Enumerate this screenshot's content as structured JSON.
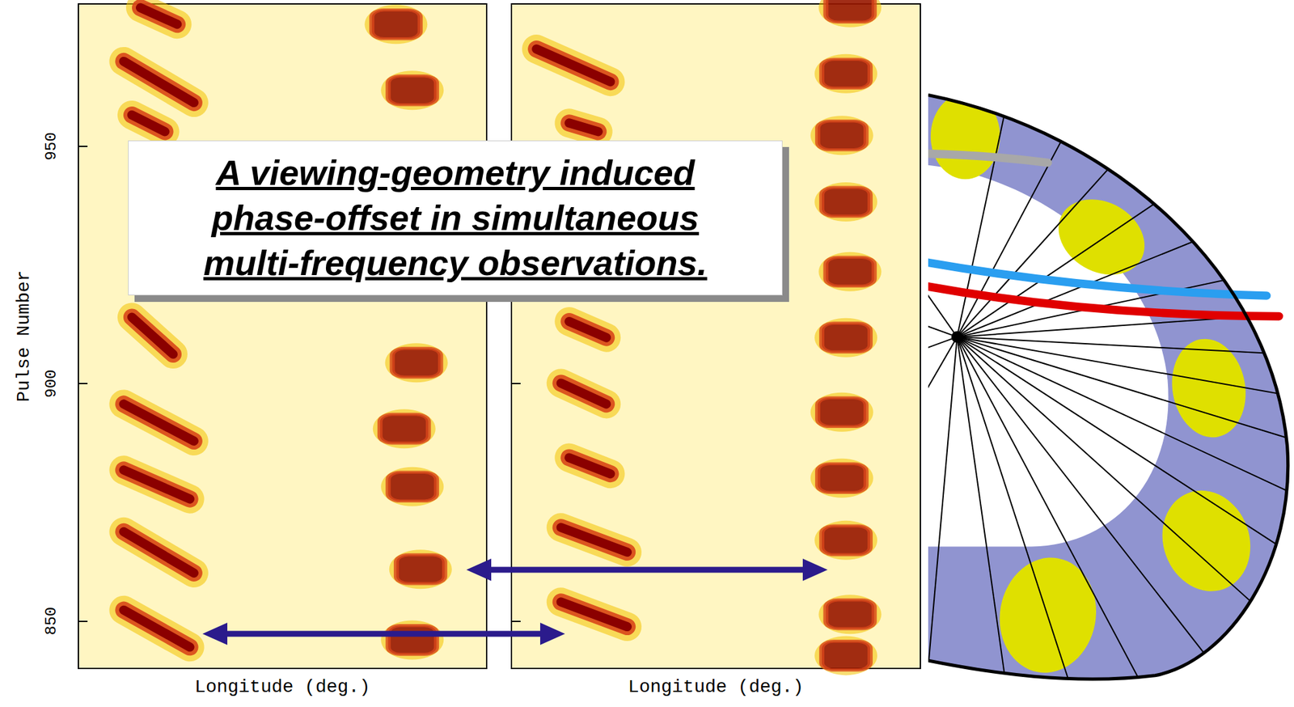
{
  "title_box": {
    "lines": [
      "A viewing-geometry induced",
      "phase-offset in simultaneous",
      "multi-frequency observations."
    ]
  },
  "chart_data": [
    {
      "type": "scatter",
      "xlabel": "Longitude (deg.)",
      "ylabel": "Pulse Number",
      "xlim": [
        0,
        100
      ],
      "ylim": [
        840,
        980
      ],
      "yticks": [
        850,
        900,
        950
      ],
      "tick_labels": "y",
      "color": "#8b0000",
      "drift_bands": [
        [
          [
            15.2,
            979.2
          ],
          [
            24.2,
            975.7
          ]
        ],
        [
          [
            11.1,
            967.9
          ],
          [
            28.3,
            959.2
          ]
        ],
        [
          [
            13.1,
            956.6
          ],
          [
            21.2,
            953.1
          ]
        ],
        [
          [
            13.1,
            914.0
          ],
          [
            23.2,
            906.2
          ]
        ],
        [
          [
            11.1,
            895.7
          ],
          [
            28.3,
            887.9
          ]
        ],
        [
          [
            11.1,
            881.8
          ],
          [
            27.3,
            875.7
          ]
        ],
        [
          [
            11.1,
            868.8
          ],
          [
            28.3,
            860.1
          ]
        ],
        [
          [
            11.1,
            852.3
          ],
          [
            27.3,
            844.5
          ]
        ]
      ],
      "subpulses": [
        [
          77.8,
          975.7
        ],
        [
          81.8,
          961.8
        ],
        [
          82.8,
          904.4
        ],
        [
          79.8,
          890.5
        ],
        [
          81.8,
          878.3
        ],
        [
          83.8,
          860.9
        ],
        [
          81.8,
          846.0
        ]
      ]
    },
    {
      "type": "scatter",
      "xlabel": "Longitude (deg.)",
      "xlim": [
        0,
        100
      ],
      "ylim": [
        840,
        980
      ],
      "yticks": [
        850,
        900,
        950
      ],
      "tick_labels": false,
      "color": "#8b0000",
      "drift_bands": [
        [
          [
            6.1,
            970.5
          ],
          [
            24.2,
            963.6
          ]
        ],
        [
          [
            14.1,
            954.9
          ],
          [
            21.2,
            953.1
          ]
        ],
        [
          [
            14.1,
            913.1
          ],
          [
            23.2,
            909.7
          ]
        ],
        [
          [
            12.1,
            900.1
          ],
          [
            23.2,
            895.7
          ]
        ],
        [
          [
            14.1,
            884.4
          ],
          [
            24.2,
            881.0
          ]
        ],
        [
          [
            12.1,
            869.7
          ],
          [
            28.3,
            864.5
          ]
        ],
        [
          [
            12.1,
            854.0
          ],
          [
            28.3,
            848.8
          ]
        ]
      ],
      "subpulses": [
        [
          82.8,
          979.2
        ],
        [
          81.8,
          965.3
        ],
        [
          80.8,
          952.3
        ],
        [
          81.8,
          938.3
        ],
        [
          82.8,
          923.6
        ],
        [
          81.8,
          909.7
        ],
        [
          80.8,
          894.0
        ],
        [
          80.8,
          880.1
        ],
        [
          81.8,
          867.0
        ],
        [
          82.8,
          851.4
        ],
        [
          81.8,
          842.7
        ]
      ]
    }
  ]
}
